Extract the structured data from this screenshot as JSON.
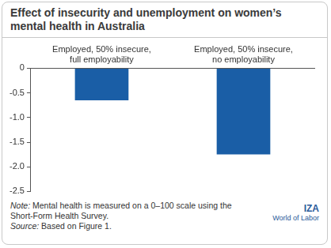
{
  "chart_data": {
    "type": "bar",
    "title": "Effect of insecurity and unemployment on women’s mental health in Australia",
    "categories": [
      "Employed, 50% insecure, full employability",
      "Employed, 50% insecure, no employability"
    ],
    "values": [
      -0.65,
      -1.75
    ],
    "color": "#1a5ea6",
    "ylim": [
      -2.5,
      0
    ],
    "yticks": [
      -2.5,
      {
        "value": -2,
        "label": "-2.0"
      },
      -1.5,
      {
        "value": -1,
        "label": "-1.0"
      },
      -0.5,
      0
    ],
    "grid": false,
    "note": "Note: Mental health is measured on a 0–100 scale using the Short-Form Health Survey.",
    "source": "Source: Based on Figure 1.",
    "logo": [
      "IZA",
      "World of Labor"
    ]
  }
}
